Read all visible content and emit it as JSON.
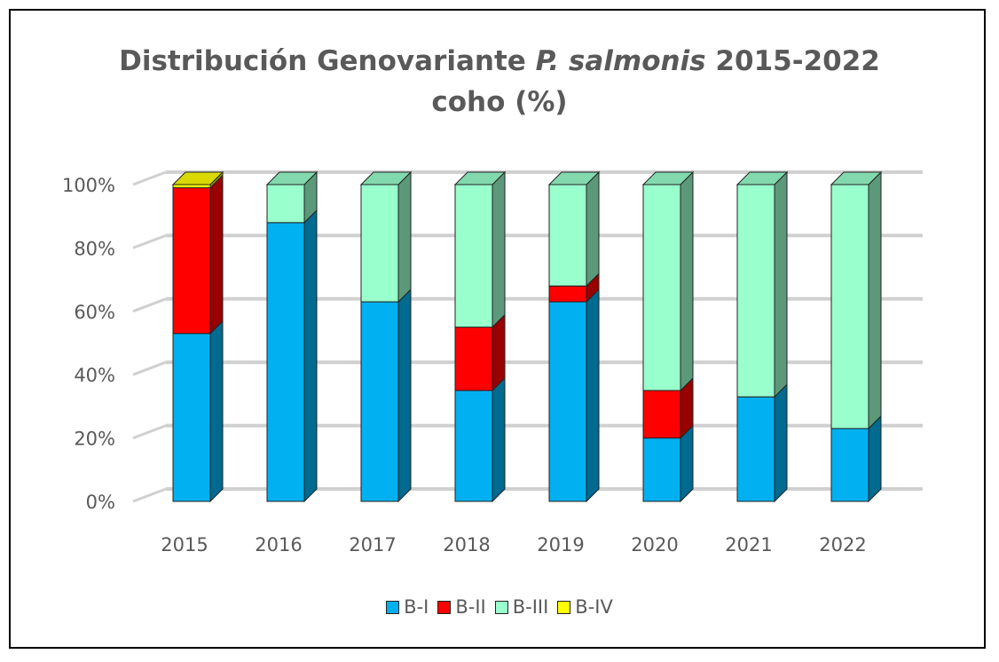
{
  "title_line1_pre": "Distribución Genovariante ",
  "title_line1_italic": "P. salmonis",
  "title_line1_post": " 2015-2022",
  "title_line2": "coho (%)",
  "chart_data": {
    "type": "bar",
    "stacked": true,
    "title": "Distribución Genovariante P. salmonis 2015-2022 coho (%)",
    "categories": [
      "2015",
      "2016",
      "2017",
      "2018",
      "2019",
      "2020",
      "2021",
      "2022"
    ],
    "series": [
      {
        "name": "B-I",
        "color": "#00B0F0",
        "values": [
          53,
          88,
          63,
          35,
          63,
          20,
          33,
          23
        ]
      },
      {
        "name": "B-II",
        "color": "#FF0000",
        "values": [
          46,
          0,
          0,
          20,
          5,
          15,
          0,
          0
        ]
      },
      {
        "name": "B-III",
        "color": "#99FFCC",
        "values": [
          0,
          12,
          37,
          45,
          32,
          65,
          67,
          77
        ]
      },
      {
        "name": "B-IV",
        "color": "#FFFF00",
        "values": [
          1,
          0,
          0,
          0,
          0,
          0,
          0,
          0
        ]
      }
    ],
    "y_ticks": [
      "0%",
      "20%",
      "40%",
      "60%",
      "80%",
      "100%"
    ],
    "ylim": [
      0,
      100
    ],
    "grid": true,
    "legend_position": "bottom"
  }
}
